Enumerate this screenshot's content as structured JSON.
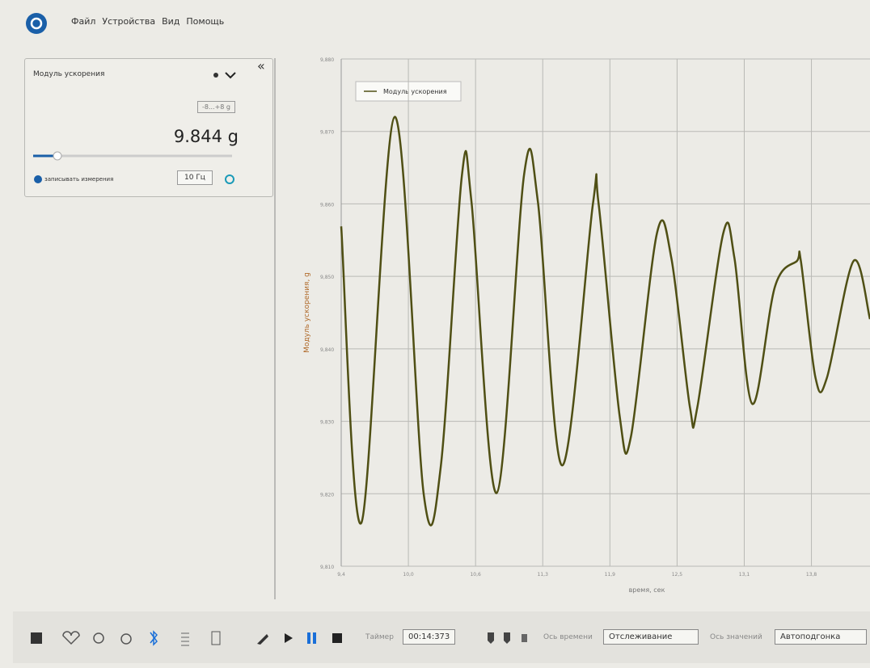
{
  "app": {
    "menu": [
      "Файл",
      "Устройства",
      "Вид",
      "Помощь"
    ]
  },
  "panel": {
    "sensor": "Модуль ускорения",
    "range": "-8...+8 g",
    "reading": "9.844 g",
    "record": "записывать измерения",
    "rate": "10 Гц"
  },
  "chart_data": {
    "type": "line",
    "x_label": "время, сек",
    "y_label": "Модуль ускорения, g",
    "xlim": [
      9.38,
      14.3
    ],
    "xticks": [
      {
        "value": 9.38,
        "label": "9,4"
      },
      {
        "value": 10.005,
        "label": "10,0"
      },
      {
        "value": 10.63,
        "label": "10,6"
      },
      {
        "value": 11.255,
        "label": "11,3"
      },
      {
        "value": 11.88,
        "label": "11,9"
      },
      {
        "value": 12.505,
        "label": "12,5"
      },
      {
        "value": 13.13,
        "label": "13,1"
      },
      {
        "value": 13.755,
        "label": "13,8"
      }
    ],
    "ylim": [
      9.81,
      9.88
    ],
    "yticks": [
      {
        "value": 9.81,
        "label": "9,810"
      },
      {
        "value": 9.82,
        "label": "9,820"
      },
      {
        "value": 9.83,
        "label": "9,830"
      },
      {
        "value": 9.84,
        "label": "9,840"
      },
      {
        "value": 9.85,
        "label": "9,850"
      },
      {
        "value": 9.86,
        "label": "9,860"
      },
      {
        "value": 9.87,
        "label": "9,870"
      },
      {
        "value": 9.88,
        "label": "9,880"
      }
    ],
    "grid": true,
    "x": [
      9.38,
      9.568,
      9.877,
      10.148,
      10.306,
      10.502,
      10.592,
      10.826,
      11.082,
      11.21,
      11.436,
      11.722,
      11.775,
      11.971,
      12.076,
      12.317,
      12.452,
      12.625,
      12.693,
      12.934,
      13.039,
      13.205,
      13.416,
      13.619,
      13.657,
      13.793,
      13.899,
      14.146,
      14.3
    ],
    "series": [
      {
        "name": "Модуль ускорения",
        "color": "#4f4f14",
        "values": [
          9.8569,
          9.816,
          9.872,
          9.8199,
          9.8237,
          9.8638,
          9.8603,
          9.8201,
          9.8641,
          9.8603,
          9.8239,
          9.86,
          9.86,
          9.8307,
          9.8279,
          9.8559,
          9.8525,
          9.8319,
          9.8319,
          9.8559,
          9.8525,
          9.8324,
          9.8486,
          9.8521,
          9.8521,
          9.836,
          9.836,
          9.8521,
          9.8441
        ]
      }
    ]
  },
  "toolbar": {
    "timer_label": "Таймер",
    "timer": "00:14:373",
    "time_axis_label": "Ось времени",
    "time_axis": "Отслеживание",
    "value_axis_label": "Ось значений",
    "value_axis": "Автоподгонка"
  }
}
